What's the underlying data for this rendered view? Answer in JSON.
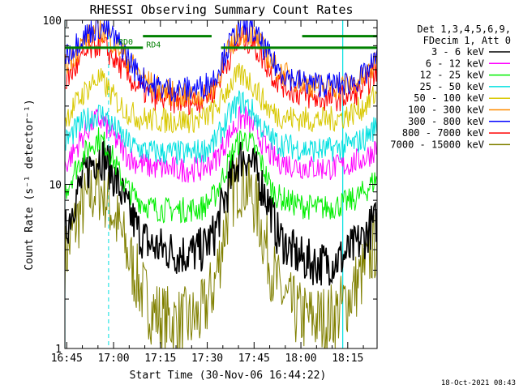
{
  "chart_data": {
    "type": "line",
    "title": "RHESSI Observing Summary Count Rates",
    "xlabel": "Start Time (30-Nov-06 16:44:22)",
    "ylabel": "Count Rate (s⁻¹ detector⁻¹)",
    "y_scale": "log",
    "ylim": [
      1,
      100
    ],
    "xlim_minutes": [
      0,
      100
    ],
    "x_tick_labels": [
      "16:45",
      "17:00",
      "17:15",
      "17:30",
      "17:45",
      "18:00",
      "18:15"
    ],
    "y_tick_labels": [
      "1",
      "10",
      "100"
    ],
    "legend": {
      "position": "top-right",
      "header": [
        "Det 1,3,4,5,6,9,",
        "FDecim 1, Att 0"
      ]
    },
    "timestamp": "18-Oct-2021 08:43",
    "grid": false,
    "attenuator_labels": [
      "RD0",
      "RD4"
    ],
    "series": [
      {
        "name": "3 - 6 keV",
        "color": "#000000",
        "x": [
          0,
          3,
          6,
          9,
          11,
          13,
          15,
          18,
          20,
          22,
          24,
          26,
          28,
          32,
          36,
          40,
          44,
          48,
          50,
          52,
          54,
          56,
          58,
          60,
          62,
          64,
          66,
          68,
          72,
          76,
          80,
          84,
          88,
          92,
          96,
          98,
          100
        ],
        "y": [
          5,
          8,
          11,
          14,
          15,
          14,
          12,
          9,
          7,
          6,
          5,
          4.5,
          4.2,
          4,
          3.8,
          3.8,
          4,
          5,
          7,
          9,
          12,
          14.5,
          15,
          13,
          11,
          9,
          7,
          5,
          4,
          3.5,
          3.3,
          3.3,
          3.5,
          4,
          4.8,
          5.5,
          6
        ]
      },
      {
        "name": "6 - 12 keV",
        "color": "#ff00ff",
        "x": [
          0,
          3,
          6,
          9,
          11,
          13,
          15,
          18,
          20,
          22,
          24,
          26,
          28,
          32,
          36,
          40,
          44,
          48,
          50,
          52,
          54,
          56,
          58,
          60,
          62,
          64,
          66,
          68,
          72,
          76,
          80,
          84,
          88,
          92,
          96,
          98,
          100
        ],
        "y": [
          13,
          16,
          20,
          24,
          25,
          23,
          20,
          17,
          15,
          14,
          13.5,
          13,
          12.8,
          12.5,
          12.3,
          12.3,
          12.5,
          14,
          16,
          19,
          22,
          25,
          25.5,
          23,
          20,
          17,
          15,
          14,
          13.2,
          12.8,
          12.6,
          12.6,
          12.8,
          13.5,
          14.5,
          15.5,
          17
        ]
      },
      {
        "name": "12 - 25 keV",
        "color": "#00ee00",
        "x": [
          0,
          3,
          6,
          9,
          11,
          13,
          15,
          18,
          20,
          22,
          24,
          26,
          28,
          32,
          36,
          40,
          44,
          48,
          50,
          52,
          54,
          56,
          58,
          60,
          62,
          64,
          66,
          68,
          72,
          76,
          80,
          84,
          88,
          92,
          96,
          98,
          100
        ],
        "y": [
          9,
          12,
          15,
          18,
          19,
          17.5,
          15,
          11,
          9.5,
          8.5,
          8,
          7.5,
          7.2,
          7,
          7,
          7,
          7.2,
          8.5,
          10.5,
          13,
          16,
          18.5,
          19,
          17.5,
          15,
          12,
          9.5,
          8.5,
          7.8,
          7.4,
          7.2,
          7.2,
          7.5,
          8,
          9,
          10,
          11
        ]
      },
      {
        "name": "25 - 50 keV",
        "color": "#00e0e0",
        "x": [
          0,
          3,
          6,
          9,
          11,
          13,
          15,
          18,
          20,
          22,
          24,
          26,
          28,
          32,
          36,
          40,
          44,
          48,
          50,
          52,
          54,
          56,
          58,
          60,
          62,
          64,
          66,
          68,
          72,
          76,
          80,
          84,
          88,
          92,
          96,
          98,
          100
        ],
        "y": [
          18,
          21,
          24,
          26,
          27,
          26,
          23,
          20,
          18,
          17,
          16.5,
          16,
          15.8,
          15.5,
          15.5,
          15.5,
          16,
          18,
          21,
          25,
          29,
          32,
          31,
          28,
          24,
          21,
          19,
          18,
          17,
          16.5,
          16.2,
          16.2,
          16.8,
          17.5,
          19,
          21,
          23
        ]
      },
      {
        "name": "50 - 100 keV",
        "color": "#d8c800",
        "x": [
          0,
          3,
          6,
          9,
          11,
          13,
          15,
          18,
          20,
          22,
          24,
          26,
          28,
          32,
          36,
          40,
          44,
          48,
          50,
          52,
          54,
          56,
          58,
          60,
          62,
          64,
          66,
          68,
          72,
          76,
          80,
          84,
          88,
          92,
          96,
          98,
          100
        ],
        "y": [
          25,
          30,
          36,
          42,
          44,
          40,
          35,
          30,
          28,
          26.5,
          25.5,
          25,
          24.8,
          24.5,
          24.5,
          24.5,
          25,
          28,
          32,
          38,
          43,
          46,
          45,
          41,
          36,
          31,
          28,
          26.5,
          25.5,
          25,
          24.8,
          24.8,
          25.5,
          27,
          30,
          33,
          36
        ]
      },
      {
        "name": "100 - 300 keV",
        "color": "#ff8c00",
        "x": [
          0,
          3,
          6,
          9,
          11,
          13,
          15,
          18,
          20,
          22,
          24,
          26,
          28,
          32,
          36,
          40,
          44,
          48,
          50,
          52,
          54,
          56,
          58,
          60,
          62,
          64,
          66,
          68,
          72,
          76,
          80,
          84,
          88,
          92,
          96,
          98,
          100
        ],
        "y": [
          52,
          62,
          74,
          84,
          88,
          84,
          76,
          66,
          58,
          52,
          47,
          43,
          40,
          37,
          35,
          34,
          35,
          40,
          50,
          62,
          74,
          84,
          86,
          82,
          74,
          64,
          56,
          50,
          45,
          42,
          40,
          39,
          39.5,
          41,
          45,
          50,
          56
        ]
      },
      {
        "name": "300 - 800 keV",
        "color": "#0000ff",
        "x": [
          0,
          3,
          6,
          9,
          11,
          13,
          15,
          18,
          20,
          22,
          24,
          26,
          28,
          32,
          36,
          40,
          44,
          48,
          50,
          52,
          54,
          56,
          58,
          60,
          62,
          64,
          66,
          68,
          72,
          76,
          80,
          84,
          88,
          92,
          96,
          98,
          100
        ],
        "y": [
          60,
          70,
          80,
          88,
          91,
          88,
          80,
          70,
          60,
          52,
          46,
          42,
          40,
          38.5,
          38,
          38,
          39,
          45,
          55,
          67,
          79,
          88,
          90,
          86,
          77,
          67,
          58,
          51,
          45,
          42,
          41,
          40.5,
          40.5,
          42,
          46,
          52,
          58
        ]
      },
      {
        "name": "800 - 7000 keV",
        "color": "#ff0000",
        "x": [
          0,
          3,
          6,
          9,
          11,
          13,
          15,
          18,
          20,
          22,
          24,
          26,
          28,
          32,
          36,
          40,
          44,
          48,
          50,
          52,
          54,
          56,
          58,
          60,
          62,
          64,
          66,
          68,
          72,
          76,
          80,
          84,
          88,
          92,
          96,
          98,
          100
        ],
        "y": [
          42,
          50,
          60,
          68,
          72,
          68,
          60,
          52,
          46,
          42,
          38,
          36,
          34,
          33,
          32,
          32,
          33,
          38,
          46,
          56,
          66,
          74,
          76,
          72,
          64,
          56,
          48,
          43,
          38,
          35,
          33.5,
          33,
          33.5,
          35,
          39,
          44,
          50
        ]
      },
      {
        "name": "7000 - 15000 keV",
        "color": "#808000",
        "x": [
          0,
          3,
          6,
          9,
          11,
          13,
          15,
          18,
          20,
          22,
          24,
          26,
          28,
          32,
          36,
          40,
          44,
          48,
          50,
          52,
          54,
          56,
          58,
          60,
          62,
          64,
          66,
          68,
          72,
          76,
          80,
          84,
          88,
          92,
          96,
          98,
          100
        ],
        "y": [
          3.5,
          5.5,
          7.5,
          9,
          9.5,
          8.5,
          7,
          5,
          3.8,
          3,
          2.4,
          2,
          1.7,
          1.5,
          1.45,
          1.45,
          1.6,
          2.5,
          4,
          6.5,
          9,
          10.5,
          10,
          8.5,
          6.5,
          4.5,
          3.2,
          2.4,
          1.8,
          1.55,
          1.5,
          1.5,
          1.7,
          2.2,
          3,
          3.8,
          4.5
        ]
      }
    ],
    "attenuator_steps": [
      {
        "label": "RD0",
        "color": "#008000",
        "segments": [
          {
            "x": [
              0,
              25
            ],
            "y": [
              68,
              68
            ]
          },
          {
            "x": [
              50,
              100
            ],
            "y": [
              68,
              68
            ]
          }
        ]
      },
      {
        "label": "RD4",
        "color": "#008000",
        "segments": [
          {
            "x": [
              25,
              47
            ],
            "y": [
              80,
              80
            ]
          },
          {
            "x": [
              76,
              100
            ],
            "y": [
              80,
              80
            ]
          }
        ]
      }
    ],
    "vertical_markers": {
      "solid_cyan": [
        0,
        89
      ],
      "dashed_cyan": [
        14,
        100
      ]
    }
  }
}
